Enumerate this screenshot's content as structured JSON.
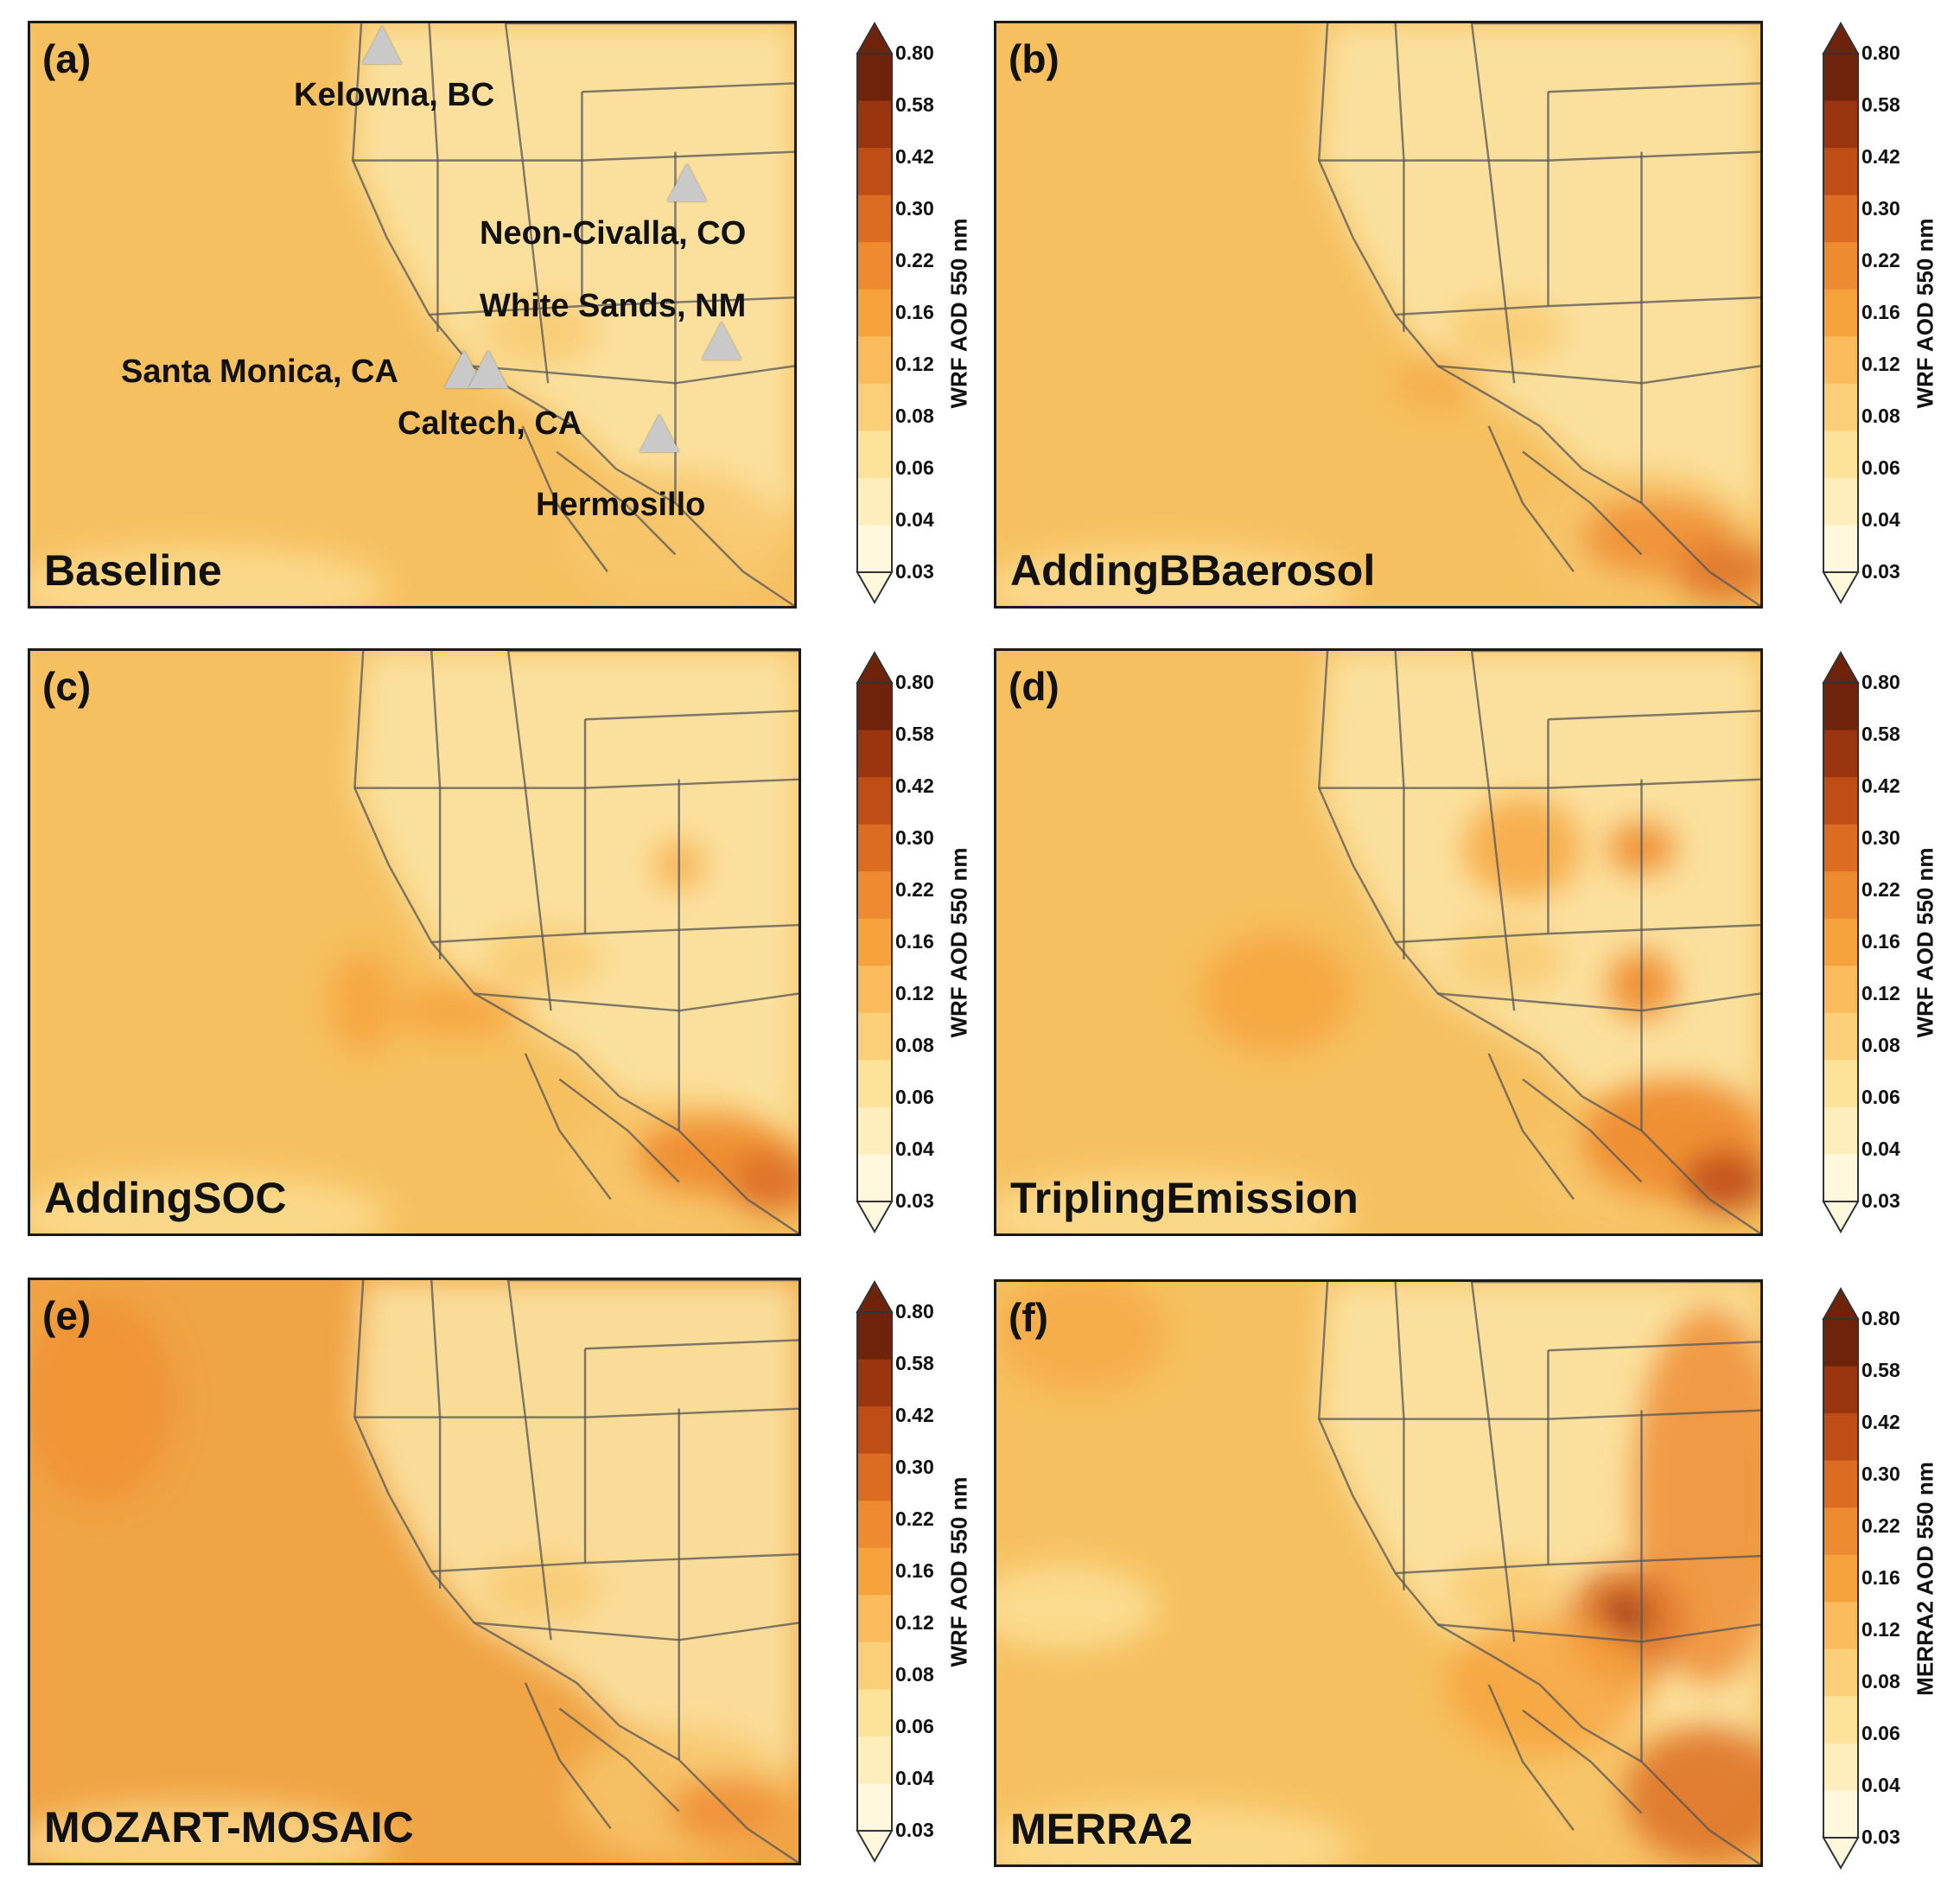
{
  "colors": {
    "scale": [
      "#fff8dc",
      "#fdeebc",
      "#fde29a",
      "#fbcf77",
      "#f9bb5c",
      "#f6a23c",
      "#ee8a2f",
      "#db6c22",
      "#bf4e16",
      "#9a3510",
      "#6f230a"
    ],
    "map_low": "#fbe6a8",
    "map_mid": "#f8c66a",
    "map_ocean_base": "#f6c060",
    "map_ocean_dark": "#f0a444",
    "border": "#555555"
  },
  "colorbar_ticks": [
    "0.80",
    "0.58",
    "0.42",
    "0.30",
    "0.22",
    "0.16",
    "0.12",
    "0.08",
    "0.06",
    "0.04",
    "0.03"
  ],
  "sites": [
    {
      "name": "Kelowna, BC"
    },
    {
      "name": "Neon-Civalla, CO"
    },
    {
      "name": "White Sands, NM"
    },
    {
      "name": "Santa Monica, CA"
    },
    {
      "name": "Caltech, CA"
    },
    {
      "name": "Hermosillo"
    }
  ],
  "panels": [
    {
      "letter": "(a)",
      "name": "Baseline",
      "cbar_title": "WRF AOD 550 nm",
      "ocean_level": "base",
      "hotspots": "none"
    },
    {
      "letter": "(b)",
      "name": "AddingBBaerosol",
      "cbar_title": "WRF AOD 550 nm",
      "ocean_level": "base",
      "hotspots": "south-mexico"
    },
    {
      "letter": "(c)",
      "name": "AddingSOC",
      "cbar_title": "WRF AOD 550 nm",
      "ocean_level": "base",
      "hotspots": "coast-plumes"
    },
    {
      "letter": "(d)",
      "name": "TriplingEmission",
      "cbar_title": "WRF AOD 550 nm",
      "ocean_level": "base",
      "hotspots": "east-plains"
    },
    {
      "letter": "(e)",
      "name": "MOZART-MOSAIC",
      "cbar_title": "WRF AOD 550 nm",
      "ocean_level": "dark",
      "hotspots": "west-ocean"
    },
    {
      "letter": "(f)",
      "name": "MERRA2",
      "cbar_title": "MERRA2 AOD 550 nm",
      "ocean_level": "base",
      "hotspots": "merra-east"
    }
  ]
}
